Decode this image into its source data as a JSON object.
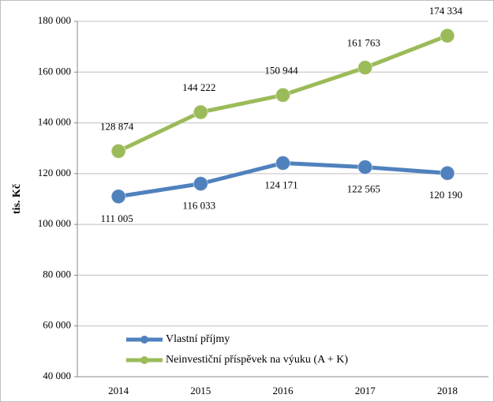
{
  "chart_data": {
    "type": "line",
    "y_label": "tis. Kč",
    "categories": [
      "2014",
      "2015",
      "2016",
      "2017",
      "2018"
    ],
    "series": [
      {
        "name": "Vlastní příjmy",
        "color": "#4f81bd",
        "values": [
          111005,
          116033,
          124171,
          122565,
          120190
        ],
        "value_labels": [
          "111 005",
          "116 033",
          "124 171",
          "122 565",
          "120 190"
        ],
        "label_position": "below"
      },
      {
        "name": "Neinvestiční příspěvek na výuku  (A + K)",
        "color": "#9bbb59",
        "values": [
          128874,
          144222,
          150944,
          161763,
          174334
        ],
        "value_labels": [
          "128 874",
          "144 222",
          "150 944",
          "161 763",
          "174 334"
        ],
        "label_position": "above"
      }
    ],
    "ylim": [
      40000,
      180000
    ],
    "yticks": [
      {
        "value": 40000,
        "label": "40 000"
      },
      {
        "value": 60000,
        "label": "60 000"
      },
      {
        "value": 80000,
        "label": "80 000"
      },
      {
        "value": 100000,
        "label": "100 000"
      },
      {
        "value": 120000,
        "label": "120 000"
      },
      {
        "value": 140000,
        "label": "140 000"
      },
      {
        "value": 160000,
        "label": "160 000"
      },
      {
        "value": 180000,
        "label": "180 000"
      }
    ],
    "grid": true,
    "legend": "lower left"
  }
}
